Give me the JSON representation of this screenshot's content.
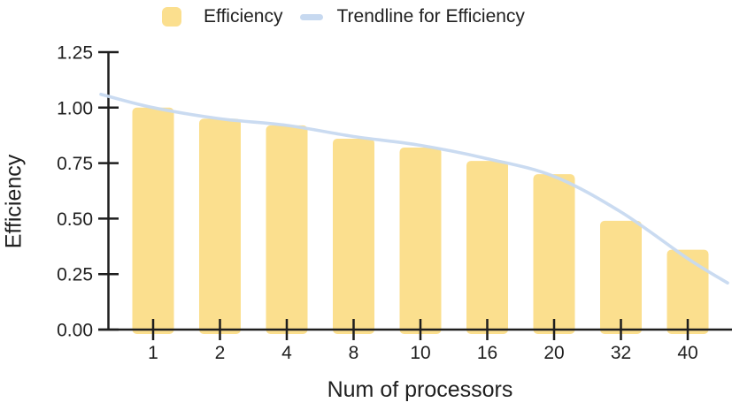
{
  "chart_data": {
    "type": "bar",
    "title": "",
    "xlabel": "Num of processors",
    "ylabel": "Efficiency",
    "categories": [
      "1",
      "2",
      "4",
      "8",
      "10",
      "16",
      "20",
      "32",
      "40"
    ],
    "ylim": [
      0,
      1.25
    ],
    "ytick_labels": [
      "0.00",
      "0.25",
      "0.50",
      "0.75",
      "1.00",
      "1.25"
    ],
    "ytick_step": 0.25,
    "grid": false,
    "legend_position": "top",
    "series": [
      {
        "name": "Efficiency",
        "type": "bar",
        "color": "#FBDF8E",
        "values": [
          1.0,
          0.95,
          0.92,
          0.86,
          0.82,
          0.76,
          0.7,
          0.49,
          0.36
        ]
      },
      {
        "name": "Trendline for Efficiency",
        "type": "line",
        "color": "#C7D9F0",
        "values": [
          1.0,
          0.95,
          0.92,
          0.87,
          0.83,
          0.77,
          0.69,
          0.53,
          0.32
        ],
        "left_edge_value": 1.06,
        "right_edge_value": 0.21
      }
    ]
  },
  "legend": {
    "items": [
      {
        "label": "Efficiency",
        "swatch": "square",
        "color": "#FBDF8E"
      },
      {
        "label": "Trendline for Efficiency",
        "swatch": "line",
        "color": "#C7D9F0"
      }
    ]
  },
  "colors": {
    "bar": "#FBDF8E",
    "trendline": "#C7D9F0",
    "axis": "#1E1E1E",
    "text": "#1F1F1F",
    "background": "#FFFFFF"
  }
}
